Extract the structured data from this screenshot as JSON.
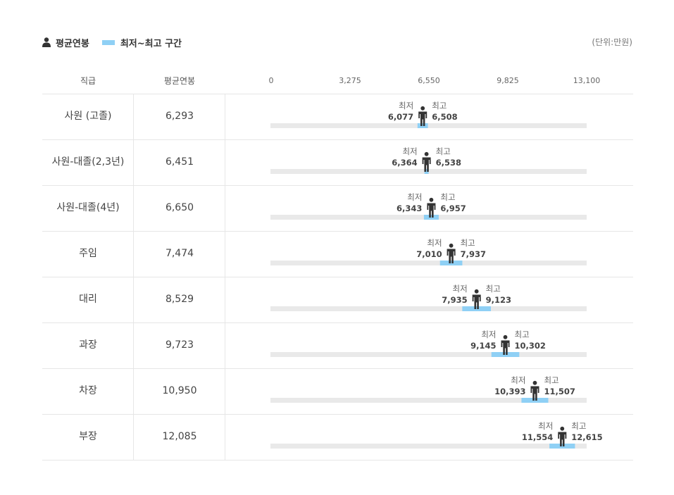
{
  "legend": {
    "avg_label": "평균연봉",
    "range_label": "최저~최고 구간"
  },
  "unit_label": "(단위:만원)",
  "headers": {
    "rank": "직급",
    "avg": "평균연봉"
  },
  "min_label": "최저",
  "max_label": "최고",
  "colors": {
    "track": "#e9e9e9",
    "range": "#8fd0f5",
    "person": "#333333"
  },
  "chart_data": {
    "type": "table",
    "xlim": [
      0,
      13100
    ],
    "ticks": [
      "0",
      "3,275",
      "6,550",
      "9,825",
      "13,100"
    ],
    "tick_values": [
      0,
      3275,
      6550,
      9825,
      13100
    ],
    "rows": [
      {
        "rank": "사원 (고졸)",
        "avg_text": "6,293",
        "avg": 6293,
        "min": 6077,
        "max": 6508,
        "min_text": "6,077",
        "max_text": "6,508"
      },
      {
        "rank": "사원-대졸(2,3년)",
        "avg_text": "6,451",
        "avg": 6451,
        "min": 6364,
        "max": 6538,
        "min_text": "6,364",
        "max_text": "6,538"
      },
      {
        "rank": "사원-대졸(4년)",
        "avg_text": "6,650",
        "avg": 6650,
        "min": 6343,
        "max": 6957,
        "min_text": "6,343",
        "max_text": "6,957"
      },
      {
        "rank": "주임",
        "avg_text": "7,474",
        "avg": 7474,
        "min": 7010,
        "max": 7937,
        "min_text": "7,010",
        "max_text": "7,937"
      },
      {
        "rank": "대리",
        "avg_text": "8,529",
        "avg": 8529,
        "min": 7935,
        "max": 9123,
        "min_text": "7,935",
        "max_text": "9,123"
      },
      {
        "rank": "과장",
        "avg_text": "9,723",
        "avg": 9723,
        "min": 9145,
        "max": 10302,
        "min_text": "9,145",
        "max_text": "10,302"
      },
      {
        "rank": "차장",
        "avg_text": "10,950",
        "avg": 10950,
        "min": 10393,
        "max": 11507,
        "min_text": "10,393",
        "max_text": "11,507"
      },
      {
        "rank": "부장",
        "avg_text": "12,085",
        "avg": 12085,
        "min": 11554,
        "max": 12615,
        "min_text": "11,554",
        "max_text": "12,615"
      }
    ]
  }
}
